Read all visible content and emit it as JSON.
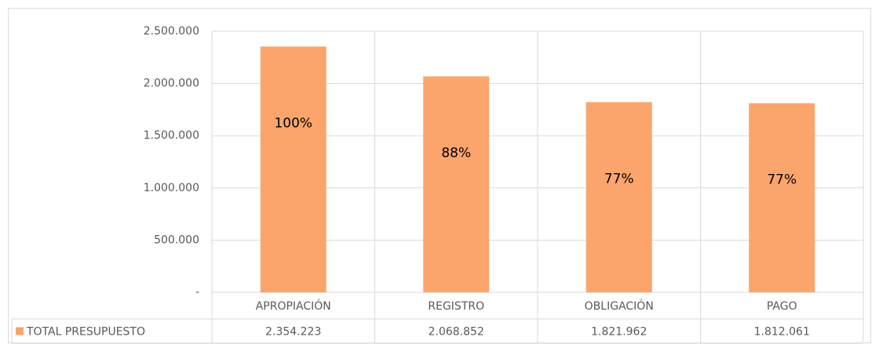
{
  "chart_data": {
    "type": "bar",
    "categories": [
      "APROPIACIÓN",
      "REGISTRO",
      "OBLIGACIÓN",
      "PAGO"
    ],
    "series": [
      {
        "name": "TOTAL PRESUPUESTO",
        "color": "#fba46c",
        "values": [
          2354223,
          2068852,
          1821962,
          1812061
        ],
        "value_labels": [
          "2.354.223",
          "2.068.852",
          "1.821.962",
          "1.812.061"
        ]
      }
    ],
    "percent_labels": [
      "100%",
      "88%",
      "77%",
      "77%"
    ],
    "ylim": [
      0,
      2500000
    ],
    "yticks": [
      {
        "value": 0,
        "label": "-"
      },
      {
        "value": 500000,
        "label": "500.000"
      },
      {
        "value": 1000000,
        "label": "1.000.000"
      },
      {
        "value": 1500000,
        "label": "1.500.000"
      },
      {
        "value": 2000000,
        "label": "2.000.000"
      },
      {
        "value": 2500000,
        "label": "2.500.000"
      }
    ],
    "grid": true
  }
}
